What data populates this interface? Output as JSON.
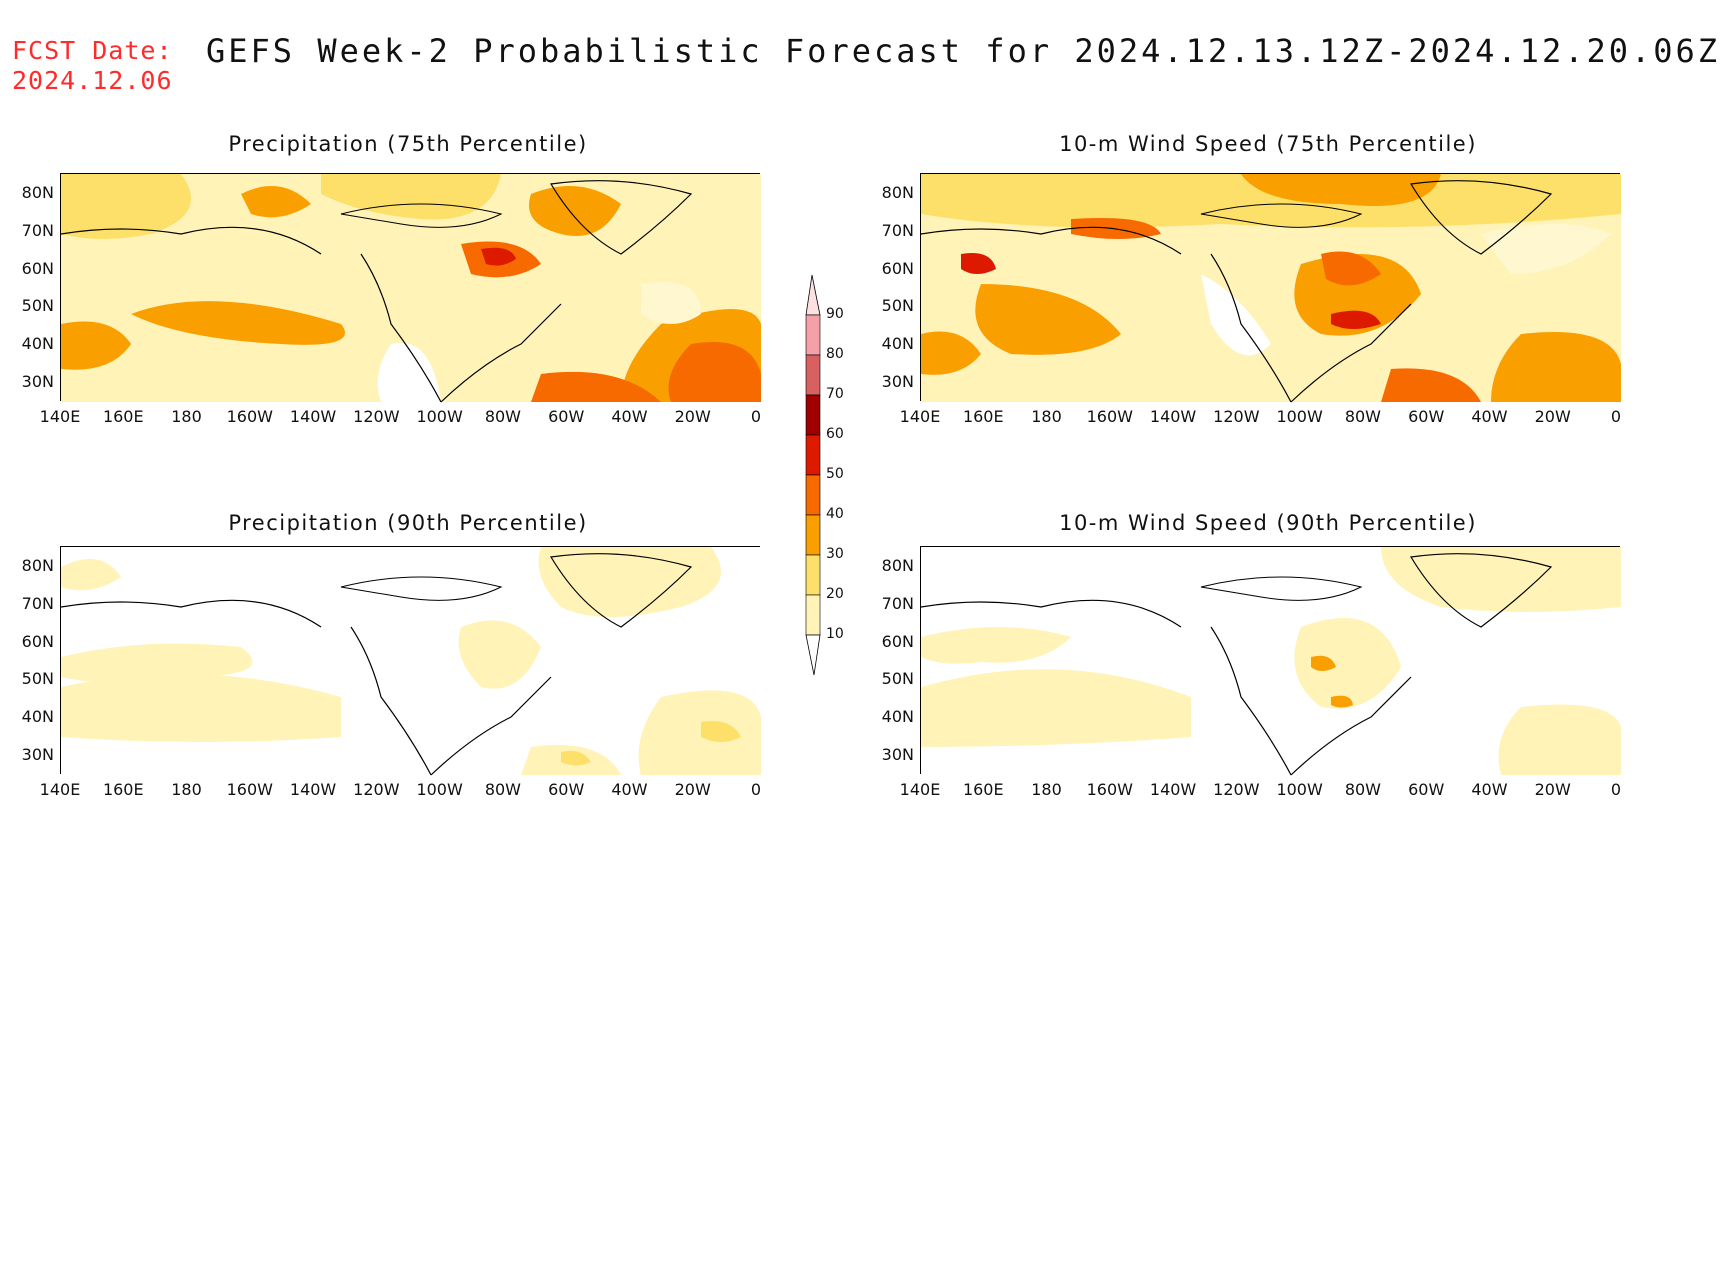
{
  "header": {
    "fcst_label": "FCST Date:",
    "fcst_date": "2024.12.06",
    "title": "GEFS Week-2 Probabilistic Forecast for 2024.12.13.12Z-2024.12.20.06Z"
  },
  "panels": [
    {
      "id": "precip75",
      "title": "Precipitation (75th Percentile)"
    },
    {
      "id": "wind75",
      "title": "10-m Wind Speed (75th Percentile)"
    },
    {
      "id": "precip90",
      "title": "Precipitation (90th Percentile)"
    },
    {
      "id": "wind90",
      "title": "10-m Wind Speed (90th Percentile)"
    }
  ],
  "axes": {
    "lat_labels": [
      "80N",
      "70N",
      "60N",
      "50N",
      "40N",
      "30N"
    ],
    "lon_labels": [
      "140E",
      "160E",
      "180",
      "160W",
      "140W",
      "120W",
      "100W",
      "80W",
      "60W",
      "40W",
      "20W",
      "0"
    ]
  },
  "legend": {
    "labels": [
      "90",
      "80",
      "70",
      "60",
      "50",
      "40",
      "30",
      "20",
      "10"
    ],
    "colors": [
      "#fde0e0",
      "#f4a0a8",
      "#d86060",
      "#a00000",
      "#dd1a00",
      "#f76a00",
      "#fa9f00",
      "#fde06a",
      "#fff3b8"
    ]
  }
}
